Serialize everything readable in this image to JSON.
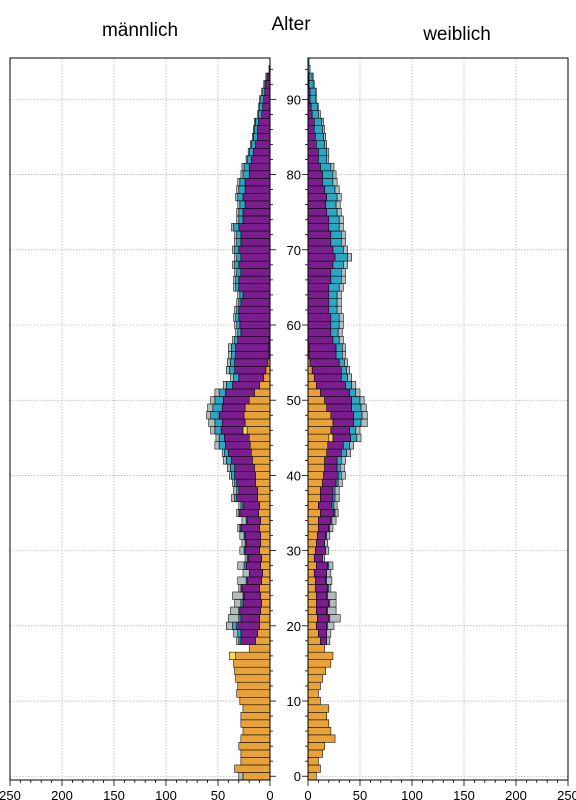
{
  "colors": {
    "ledig": "#E8A23A",
    "verheiratet": "#7A1E8E",
    "verwitwet": "#2BA7C4",
    "geschieden": "#B4BDBD",
    "other": "#F2E14C",
    "background": "#FFFFFF",
    "grid": "#9A9A9A"
  },
  "chart_data": {
    "type": "bar",
    "orientation": "horizontal",
    "title_left": "männlich",
    "title_center": "Alter",
    "title_right": "weiblich",
    "xlim": [
      0,
      250
    ],
    "ylim": [
      0,
      95
    ],
    "x_ticks": [
      0,
      50,
      100,
      150,
      200,
      250
    ],
    "y_ticks": [
      0,
      10,
      20,
      30,
      40,
      50,
      60,
      70,
      80,
      90
    ],
    "grid": true,
    "ages_note_unit": "age",
    "series": [
      {
        "key": "ledig",
        "color": "#E8A23A"
      },
      {
        "key": "other",
        "color": "#F2E14C"
      },
      {
        "key": "verheiratet",
        "color": "#7A1E8E"
      },
      {
        "key": "verwitwet",
        "color": "#2BA7C4"
      },
      {
        "key": "geschieden",
        "color": "#B4BDBD"
      }
    ],
    "age": [
      0,
      1,
      2,
      3,
      4,
      5,
      6,
      7,
      8,
      9,
      10,
      11,
      12,
      13,
      14,
      15,
      16,
      17,
      18,
      19,
      20,
      21,
      22,
      23,
      24,
      25,
      26,
      27,
      28,
      29,
      30,
      31,
      32,
      33,
      34,
      35,
      36,
      37,
      38,
      39,
      40,
      41,
      42,
      43,
      44,
      45,
      46,
      47,
      48,
      49,
      50,
      51,
      52,
      53,
      54,
      55,
      56,
      57,
      58,
      59,
      60,
      61,
      62,
      63,
      64,
      65,
      66,
      67,
      68,
      69,
      70,
      71,
      72,
      73,
      74,
      75,
      76,
      77,
      78,
      79,
      80,
      81,
      82,
      83,
      84,
      85,
      86,
      87,
      88,
      89,
      90,
      91,
      92,
      93,
      94,
      95
    ],
    "male": {
      "ledig": [
        26,
        34,
        28,
        28,
        30,
        28,
        26,
        28,
        28,
        26,
        29,
        32,
        31,
        33,
        34,
        35,
        33,
        20,
        14,
        12,
        10,
        10,
        9,
        8,
        9,
        10,
        8,
        7,
        9,
        8,
        10,
        9,
        9,
        10,
        9,
        11,
        10,
        12,
        12,
        14,
        14,
        15,
        17,
        18,
        19,
        20,
        22,
        24,
        25,
        24,
        20,
        15,
        10,
        6,
        4,
        2,
        1,
        1,
        1,
        0,
        0,
        0,
        0,
        0,
        0,
        0,
        0,
        0,
        0,
        0,
        0,
        0,
        0,
        0,
        0,
        0,
        0,
        0,
        0,
        0,
        0,
        0,
        0,
        0,
        0,
        0,
        0,
        0,
        0,
        0,
        0,
        0,
        0,
        0,
        0,
        0
      ],
      "other": [
        0,
        0,
        0,
        0,
        0,
        0,
        0,
        0,
        0,
        0,
        0,
        0,
        0,
        0,
        0,
        0,
        6,
        0,
        0,
        0,
        0,
        0,
        0,
        0,
        0,
        0,
        0,
        0,
        0,
        0,
        0,
        0,
        0,
        0,
        0,
        0,
        0,
        0,
        0,
        0,
        0,
        0,
        0,
        0,
        0,
        0,
        4,
        0,
        0,
        0,
        0,
        0,
        0,
        0,
        0,
        0,
        0,
        0,
        0,
        0,
        0,
        0,
        0,
        0,
        0,
        0,
        0,
        0,
        0,
        0,
        0,
        0,
        0,
        0,
        0,
        0,
        0,
        0,
        0,
        0,
        0,
        0,
        0,
        0,
        0,
        0,
        0,
        0,
        0,
        0,
        0,
        0,
        0,
        0,
        0,
        0
      ],
      "verheiratet": [
        0,
        0,
        0,
        0,
        0,
        0,
        0,
        0,
        0,
        0,
        0,
        0,
        0,
        0,
        0,
        0,
        0,
        0,
        14,
        16,
        22,
        18,
        20,
        18,
        16,
        17,
        14,
        13,
        14,
        13,
        14,
        14,
        15,
        18,
        13,
        18,
        16,
        20,
        18,
        18,
        20,
        19,
        20,
        22,
        24,
        24,
        21,
        22,
        24,
        22,
        25,
        28,
        26,
        24,
        30,
        32,
        32,
        32,
        30,
        28,
        29,
        30,
        30,
        28,
        26,
        30,
        30,
        28,
        30,
        28,
        30,
        28,
        28,
        30,
        26,
        26,
        24,
        26,
        24,
        24,
        20,
        20,
        18,
        16,
        14,
        12,
        12,
        11,
        8,
        7,
        6,
        5,
        4,
        2,
        1,
        0
      ],
      "verwitwet": [
        0,
        0,
        0,
        0,
        0,
        0,
        0,
        0,
        0,
        0,
        0,
        0,
        0,
        0,
        0,
        0,
        0,
        0,
        2,
        3,
        4,
        2,
        1,
        2,
        1,
        1,
        1,
        0,
        2,
        1,
        1,
        1,
        1,
        1,
        1,
        1,
        2,
        2,
        2,
        2,
        3,
        4,
        5,
        4,
        6,
        5,
        6,
        7,
        8,
        9,
        8,
        6,
        6,
        5,
        5,
        4,
        4,
        4,
        3,
        3,
        3,
        3,
        2,
        2,
        3,
        3,
        3,
        4,
        4,
        4,
        4,
        4,
        4,
        5,
        4,
        4,
        5,
        5,
        6,
        5,
        6,
        5,
        4,
        4,
        4,
        4,
        3,
        3,
        3,
        3,
        3,
        2,
        1,
        1,
        0,
        0
      ],
      "geschieden": [
        4,
        0,
        0,
        0,
        0,
        0,
        0,
        0,
        0,
        0,
        0,
        0,
        0,
        0,
        0,
        0,
        0,
        0,
        2,
        4,
        6,
        10,
        8,
        6,
        10,
        2,
        8,
        6,
        6,
        2,
        4,
        3,
        4,
        2,
        4,
        2,
        2,
        3,
        3,
        2,
        2,
        3,
        3,
        2,
        4,
        3,
        4,
        6,
        4,
        5,
        4,
        4,
        3,
        3,
        3,
        3,
        3,
        3,
        2,
        2,
        2,
        2,
        2,
        2,
        2,
        2,
        2,
        2,
        2,
        2,
        2,
        2,
        2,
        2,
        2,
        2,
        2,
        2,
        2,
        2,
        2,
        2,
        1,
        1,
        1,
        1,
        1,
        1,
        1,
        1,
        1,
        1,
        1,
        1,
        0,
        0
      ]
    },
    "female": {
      "ledig": [
        8,
        12,
        10,
        14,
        16,
        26,
        22,
        20,
        18,
        20,
        12,
        10,
        12,
        14,
        17,
        22,
        24,
        16,
        12,
        10,
        8,
        9,
        8,
        8,
        8,
        7,
        7,
        6,
        8,
        6,
        7,
        8,
        9,
        10,
        10,
        12,
        10,
        12,
        12,
        14,
        15,
        16,
        16,
        18,
        19,
        20,
        22,
        24,
        22,
        18,
        16,
        12,
        8,
        6,
        4,
        2,
        1,
        1,
        0,
        0,
        0,
        0,
        0,
        0,
        0,
        0,
        0,
        0,
        0,
        0,
        0,
        0,
        0,
        0,
        0,
        0,
        0,
        0,
        0,
        0,
        0,
        0,
        0,
        0,
        0,
        0,
        0,
        0,
        0,
        0,
        0,
        0,
        0,
        0,
        0,
        0
      ],
      "other": [
        0,
        0,
        0,
        0,
        0,
        0,
        0,
        0,
        0,
        0,
        0,
        0,
        0,
        0,
        0,
        0,
        0,
        0,
        0,
        0,
        0,
        0,
        0,
        0,
        0,
        0,
        0,
        0,
        0,
        0,
        0,
        0,
        0,
        0,
        0,
        0,
        0,
        0,
        0,
        0,
        0,
        0,
        0,
        0,
        0,
        4,
        0,
        0,
        0,
        0,
        0,
        0,
        0,
        0,
        0,
        0,
        0,
        0,
        0,
        0,
        0,
        0,
        0,
        0,
        0,
        0,
        0,
        0,
        0,
        0,
        0,
        0,
        0,
        0,
        0,
        0,
        0,
        0,
        0,
        0,
        0,
        0,
        0,
        0,
        0,
        0,
        0,
        0,
        0,
        0,
        0,
        0,
        0,
        0,
        0,
        0
      ],
      "verheiratet": [
        0,
        0,
        0,
        0,
        0,
        0,
        0,
        0,
        0,
        0,
        0,
        0,
        0,
        0,
        0,
        0,
        0,
        0,
        6,
        8,
        10,
        11,
        10,
        12,
        10,
        12,
        10,
        12,
        11,
        8,
        10,
        8,
        8,
        10,
        12,
        13,
        13,
        12,
        12,
        13,
        14,
        12,
        12,
        14,
        15,
        17,
        18,
        20,
        22,
        24,
        26,
        28,
        28,
        26,
        28,
        28,
        26,
        26,
        24,
        22,
        22,
        22,
        20,
        20,
        20,
        20,
        22,
        22,
        24,
        26,
        24,
        22,
        22,
        20,
        20,
        18,
        17,
        18,
        16,
        14,
        14,
        12,
        10,
        10,
        8,
        7,
        6,
        6,
        4,
        3,
        2,
        2,
        1,
        1,
        0,
        0
      ],
      "verwitwet": [
        0,
        0,
        0,
        0,
        0,
        0,
        0,
        0,
        0,
        0,
        0,
        0,
        0,
        0,
        0,
        0,
        0,
        0,
        0,
        0,
        1,
        1,
        1,
        1,
        1,
        1,
        1,
        0,
        1,
        0,
        0,
        0,
        1,
        1,
        1,
        1,
        2,
        2,
        2,
        2,
        3,
        3,
        4,
        5,
        6,
        6,
        6,
        7,
        8,
        9,
        8,
        6,
        6,
        6,
        5,
        5,
        6,
        6,
        6,
        7,
        8,
        8,
        8,
        8,
        8,
        10,
        10,
        10,
        10,
        12,
        10,
        10,
        10,
        10,
        10,
        10,
        10,
        10,
        10,
        10,
        10,
        10,
        8,
        8,
        8,
        8,
        8,
        7,
        6,
        6,
        5,
        5,
        4,
        3,
        2,
        1
      ],
      "geschieden": [
        0,
        0,
        0,
        0,
        0,
        0,
        0,
        0,
        0,
        0,
        0,
        0,
        0,
        0,
        0,
        0,
        0,
        0,
        3,
        4,
        6,
        10,
        8,
        6,
        8,
        2,
        5,
        4,
        4,
        2,
        3,
        3,
        3,
        3,
        4,
        3,
        3,
        4,
        4,
        4,
        4,
        4,
        4,
        4,
        4,
        4,
        4,
        6,
        5,
        5,
        4,
        4,
        4,
        4,
        3,
        3,
        3,
        3,
        4,
        4,
        4,
        4,
        4,
        4,
        4,
        4,
        4,
        4,
        4,
        4,
        4,
        4,
        4,
        4,
        4,
        4,
        4,
        4,
        4,
        4,
        3,
        3,
        2,
        2,
        2,
        2,
        2,
        2,
        2,
        1,
        1,
        1,
        1,
        1,
        0,
        0
      ]
    }
  }
}
